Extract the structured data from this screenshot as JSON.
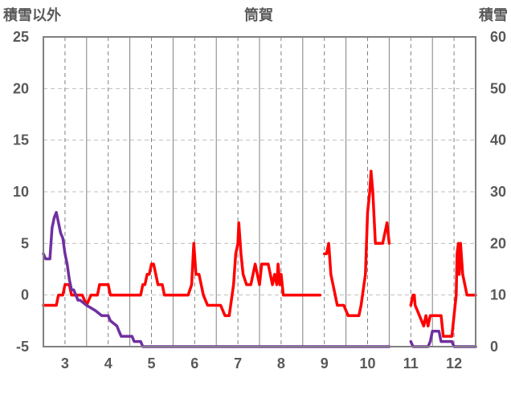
{
  "chart_data": {
    "type": "line",
    "title": "筒賀",
    "y_left_label": "積雪以外",
    "y_right_label": "積雪",
    "y_left_range": [
      -5,
      25
    ],
    "y_left_ticks": [
      "25",
      "20",
      "15",
      "10",
      "5",
      "0",
      "-5"
    ],
    "y_right_range": [
      0,
      60
    ],
    "y_right_ticks": [
      "60",
      "50",
      "40",
      "30",
      "20",
      "10",
      "0"
    ],
    "x_range": [
      2.5,
      12.5
    ],
    "x_tick_labels": [
      "3",
      "4",
      "5",
      "6",
      "7",
      "8",
      "9",
      "10",
      "11",
      "12"
    ],
    "grid": true,
    "colors": {
      "temperature": "#ff0000",
      "snow_depth": "#7030a0",
      "grid_vertical": "#808080",
      "grid_horizontal": "#bfbfbf",
      "frame": "#808080",
      "text": "#595959"
    },
    "series": [
      {
        "axis": "left",
        "color": "#ff0000",
        "segments": [
          [
            [
              2.5,
              -1
            ],
            [
              2.6,
              -1
            ],
            [
              2.8,
              -1
            ],
            [
              2.85,
              0
            ],
            [
              2.95,
              0
            ],
            [
              3.0,
              1
            ],
            [
              3.1,
              1
            ],
            [
              3.15,
              0
            ],
            [
              3.4,
              0
            ],
            [
              3.5,
              -1
            ],
            [
              3.6,
              0
            ],
            [
              3.75,
              0
            ],
            [
              3.8,
              1
            ],
            [
              4.0,
              1
            ],
            [
              4.05,
              0
            ],
            [
              4.3,
              0
            ],
            [
              4.6,
              0
            ],
            [
              4.75,
              0
            ],
            [
              4.8,
              1
            ],
            [
              4.85,
              1
            ],
            [
              4.9,
              2
            ],
            [
              4.95,
              2
            ],
            [
              5.0,
              3
            ],
            [
              5.05,
              3
            ],
            [
              5.1,
              2
            ],
            [
              5.15,
              1
            ],
            [
              5.25,
              1
            ],
            [
              5.3,
              0
            ],
            [
              5.5,
              0
            ],
            [
              5.7,
              0
            ],
            [
              5.85,
              0
            ],
            [
              5.93,
              1
            ],
            [
              5.98,
              5
            ],
            [
              6.03,
              2
            ],
            [
              6.1,
              2
            ],
            [
              6.2,
              0
            ],
            [
              6.3,
              -1
            ],
            [
              6.6,
              -1
            ],
            [
              6.7,
              -2
            ],
            [
              6.8,
              -2
            ],
            [
              6.9,
              1
            ],
            [
              6.95,
              4
            ],
            [
              7.0,
              5
            ],
            [
              7.02,
              7
            ],
            [
              7.07,
              4
            ],
            [
              7.12,
              2
            ],
            [
              7.2,
              1
            ],
            [
              7.3,
              1
            ],
            [
              7.35,
              2
            ],
            [
              7.4,
              3
            ],
            [
              7.5,
              1
            ],
            [
              7.55,
              3
            ],
            [
              7.7,
              3
            ],
            [
              7.8,
              1
            ],
            [
              7.85,
              2
            ],
            [
              7.9,
              1
            ],
            [
              7.93,
              3
            ],
            [
              7.97,
              1
            ],
            [
              8.0,
              2
            ],
            [
              8.05,
              0
            ],
            [
              8.2,
              0
            ],
            [
              8.4,
              0
            ],
            [
              8.5,
              0
            ],
            [
              8.9,
              0
            ]
          ],
          [
            [
              9.0,
              4
            ],
            [
              9.05,
              4
            ],
            [
              9.1,
              5
            ],
            [
              9.15,
              2
            ],
            [
              9.2,
              1
            ],
            [
              9.3,
              -1
            ],
            [
              9.45,
              -1
            ],
            [
              9.55,
              -2
            ],
            [
              9.8,
              -2
            ],
            [
              9.85,
              -1
            ],
            [
              9.95,
              2
            ],
            [
              10.0,
              8
            ],
            [
              10.05,
              10
            ],
            [
              10.08,
              12
            ],
            [
              10.12,
              10
            ],
            [
              10.18,
              5
            ],
            [
              10.35,
              5
            ],
            [
              10.45,
              7
            ],
            [
              10.5,
              5
            ]
          ],
          [
            [
              11.0,
              -1
            ],
            [
              11.05,
              0
            ],
            [
              11.08,
              0
            ],
            [
              11.1,
              -1
            ],
            [
              11.2,
              -2
            ],
            [
              11.3,
              -3
            ],
            [
              11.35,
              -2
            ],
            [
              11.4,
              -3
            ],
            [
              11.45,
              -2
            ],
            [
              11.7,
              -2
            ],
            [
              11.75,
              -4
            ],
            [
              11.95,
              -4
            ],
            [
              12.0,
              -2
            ],
            [
              12.05,
              0
            ],
            [
              12.07,
              4
            ],
            [
              12.1,
              5
            ],
            [
              12.12,
              2
            ],
            [
              12.15,
              5
            ],
            [
              12.2,
              2
            ],
            [
              12.3,
              0
            ],
            [
              12.5,
              0
            ]
          ]
        ]
      },
      {
        "axis": "right",
        "color": "#7030a0",
        "segments": [
          [
            [
              2.5,
              18
            ],
            [
              2.55,
              17
            ],
            [
              2.65,
              17
            ],
            [
              2.7,
              23
            ],
            [
              2.75,
              25
            ],
            [
              2.8,
              26
            ],
            [
              2.85,
              24
            ],
            [
              2.9,
              22
            ],
            [
              2.95,
              21
            ],
            [
              3.0,
              18
            ],
            [
              3.05,
              16
            ],
            [
              3.1,
              13
            ],
            [
              3.15,
              11
            ],
            [
              3.2,
              11
            ],
            [
              3.3,
              9
            ],
            [
              3.35,
              9
            ],
            [
              3.5,
              8
            ],
            [
              3.7,
              7
            ],
            [
              3.85,
              6
            ],
            [
              4.0,
              6
            ],
            [
              4.05,
              5
            ],
            [
              4.2,
              4
            ],
            [
              4.25,
              3
            ],
            [
              4.3,
              2
            ],
            [
              4.55,
              2
            ],
            [
              4.6,
              1
            ],
            [
              4.75,
              1
            ],
            [
              4.8,
              0
            ],
            [
              5.0,
              0
            ],
            [
              7.0,
              0
            ],
            [
              8.0,
              0
            ],
            [
              9.0,
              0
            ],
            [
              10.0,
              0
            ],
            [
              10.5,
              0
            ]
          ],
          [
            [
              11.0,
              1
            ],
            [
              11.05,
              0
            ],
            [
              11.4,
              0
            ],
            [
              11.45,
              1
            ],
            [
              11.5,
              3
            ],
            [
              11.55,
              3
            ],
            [
              11.65,
              3
            ],
            [
              11.7,
              1
            ],
            [
              11.95,
              1
            ],
            [
              12.0,
              0
            ],
            [
              12.5,
              0
            ]
          ]
        ]
      }
    ]
  }
}
